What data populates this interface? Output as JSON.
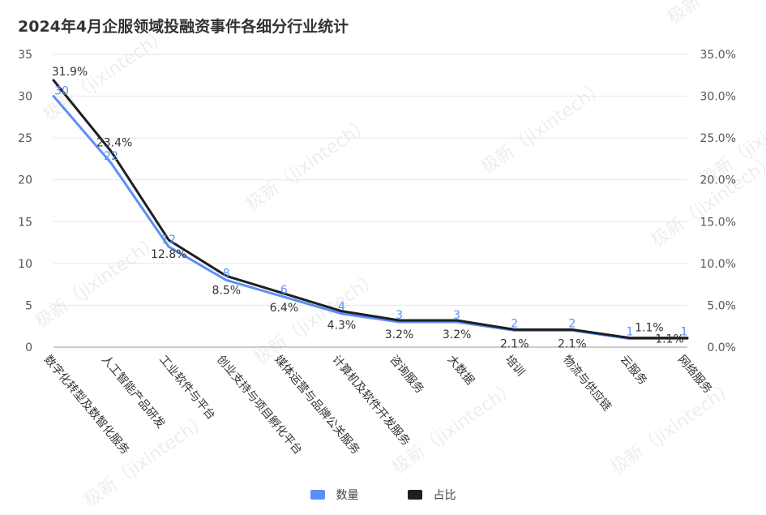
{
  "chart_data": {
    "type": "line",
    "title": "2024年4月企服领域投融资事件各细分行业统计",
    "categories": [
      "数字化转型及数智化服务",
      "人工智能产品研发",
      "工业软件与平台",
      "创业支持与项目孵化平台",
      "媒体运营与品牌公关服务",
      "计算机及软件开发服务",
      "咨询服务",
      "大数据",
      "培训",
      "物流与供应链",
      "云服务",
      "网络服务"
    ],
    "series": [
      {
        "name": "数量",
        "axis": "left",
        "color": "#5b8ff9",
        "values": [
          30,
          22,
          12,
          8,
          6,
          4,
          3,
          3,
          2,
          2,
          1,
          1
        ],
        "labels": [
          "30",
          "22",
          "12",
          "8",
          "6",
          "4",
          "3",
          "3",
          "2",
          "2",
          "1",
          "1"
        ]
      },
      {
        "name": "占比",
        "axis": "right",
        "color": "#1d1f24",
        "values": [
          31.9,
          23.4,
          12.8,
          8.5,
          6.4,
          4.3,
          3.2,
          3.2,
          2.1,
          2.1,
          1.1,
          1.1
        ],
        "labels": [
          "31.9%",
          "23.4%",
          "12.8%",
          "8.5%",
          "6.4%",
          "4.3%",
          "3.2%",
          "3.2%",
          "2.1%",
          "2.1%",
          "1.1%",
          "1.1%"
        ]
      }
    ],
    "y_left": {
      "min": 0,
      "max": 35,
      "ticks": [
        "0",
        "5",
        "10",
        "15",
        "20",
        "25",
        "30",
        "35"
      ]
    },
    "y_right": {
      "min": 0,
      "max": 35,
      "ticks": [
        "0.0%",
        "5.0%",
        "10.0%",
        "15.0%",
        "20.0%",
        "25.0%",
        "30.0%",
        "35.0%"
      ]
    },
    "grid": true,
    "legend_position": "bottom-center"
  },
  "watermark": "极新（jixintech）"
}
